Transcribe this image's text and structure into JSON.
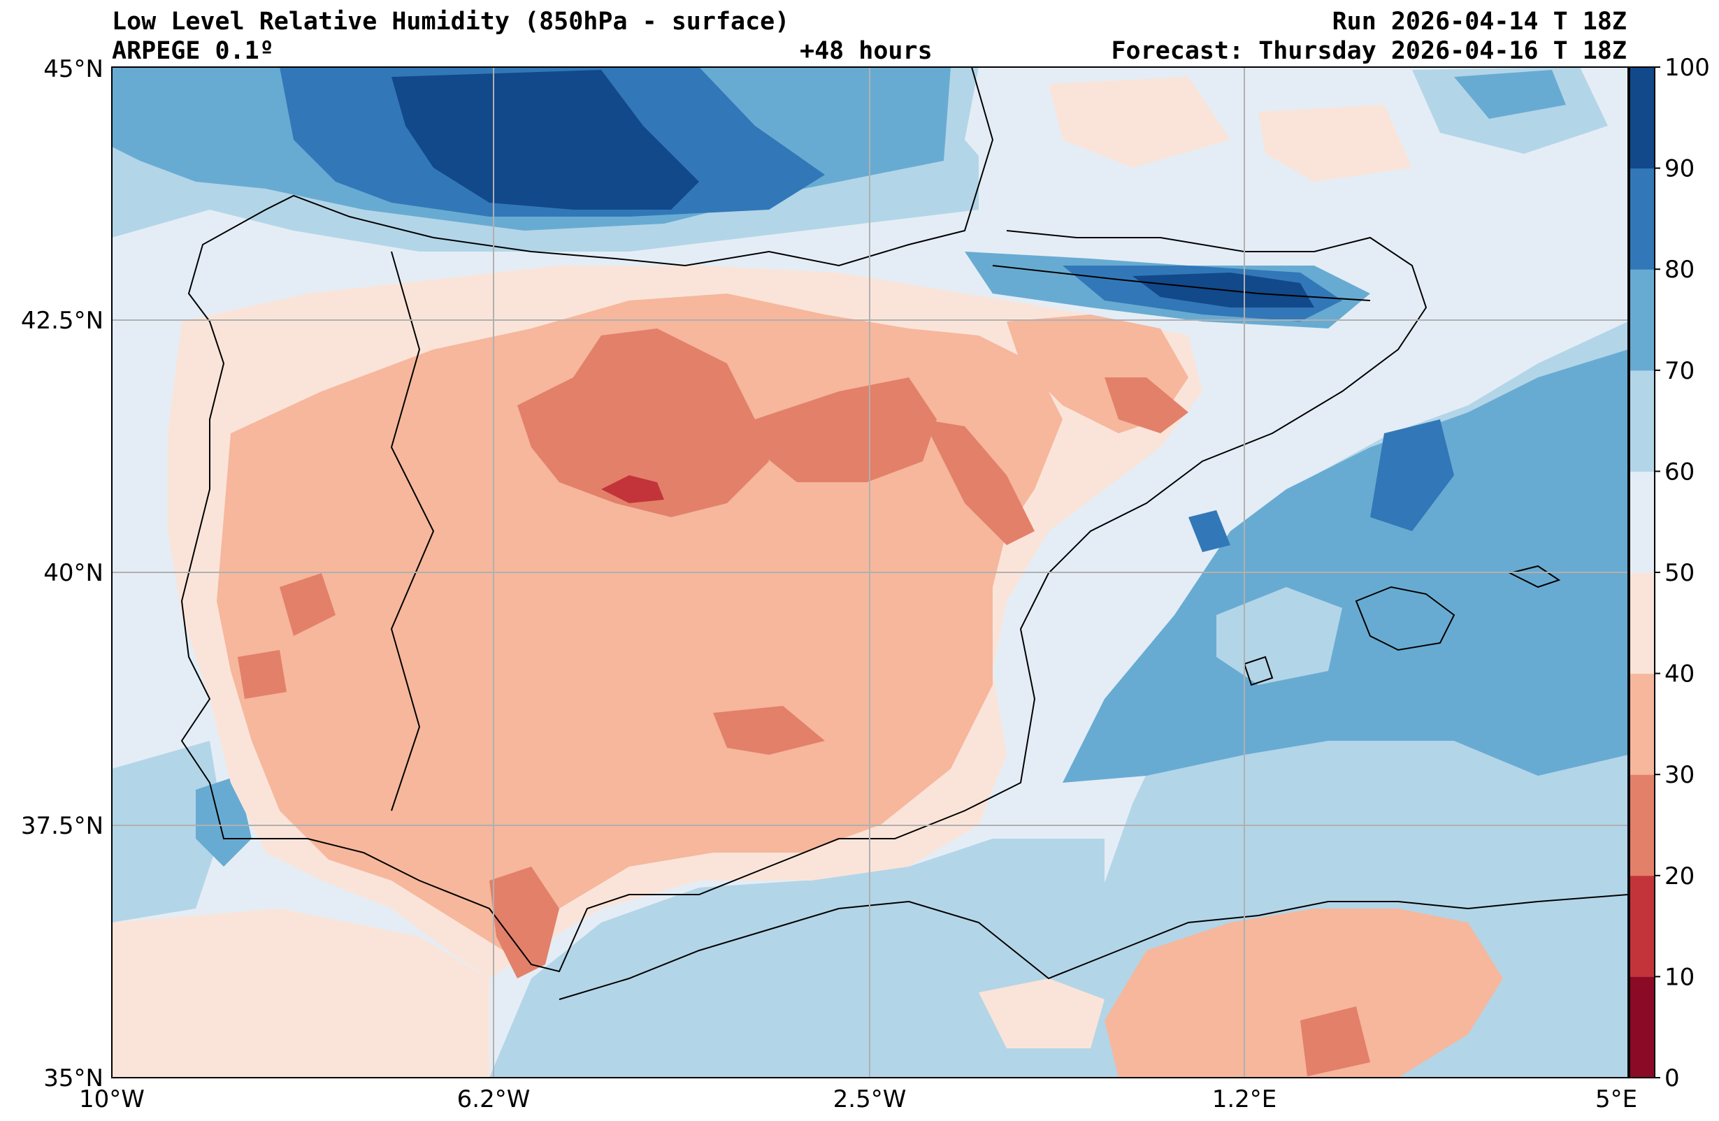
{
  "header": {
    "title": "Low Level Relative Humidity (850hPa - surface)",
    "model": "ARPEGE 0.1º",
    "lead": "+48 hours",
    "run": "Run 2026-04-14 T 18Z",
    "forecast": "Forecast: Thursday 2026-04-16 T 18Z"
  },
  "map": {
    "lon_range": [
      -10,
      5
    ],
    "lat_range": [
      35,
      45
    ],
    "lat_ticks": [
      {
        "value": 45,
        "label": "45°N"
      },
      {
        "value": 42.5,
        "label": "42.5°N"
      },
      {
        "value": 40,
        "label": "40°N"
      },
      {
        "value": 37.5,
        "label": "37.5°N"
      },
      {
        "value": 35,
        "label": "35°N"
      }
    ],
    "lon_ticks": [
      {
        "value": -10,
        "label": "10°W"
      },
      {
        "value": -6.2,
        "label": "6.2°W"
      },
      {
        "value": -2.5,
        "label": "2.5°W"
      },
      {
        "value": 1.2,
        "label": "1.2°E"
      },
      {
        "value": 5,
        "label": "5°E"
      }
    ]
  },
  "colorbar": {
    "ticks": [
      "0",
      "10",
      "20",
      "30",
      "40",
      "50",
      "60",
      "70",
      "80",
      "90",
      "100"
    ],
    "colors": [
      "#8b0a26",
      "#c3343a",
      "#e3806a",
      "#f6b79c",
      "#fae4d9",
      "#e4edf5",
      "#b3d5e8",
      "#68abd2",
      "#3278b8",
      "#11498a"
    ]
  }
}
